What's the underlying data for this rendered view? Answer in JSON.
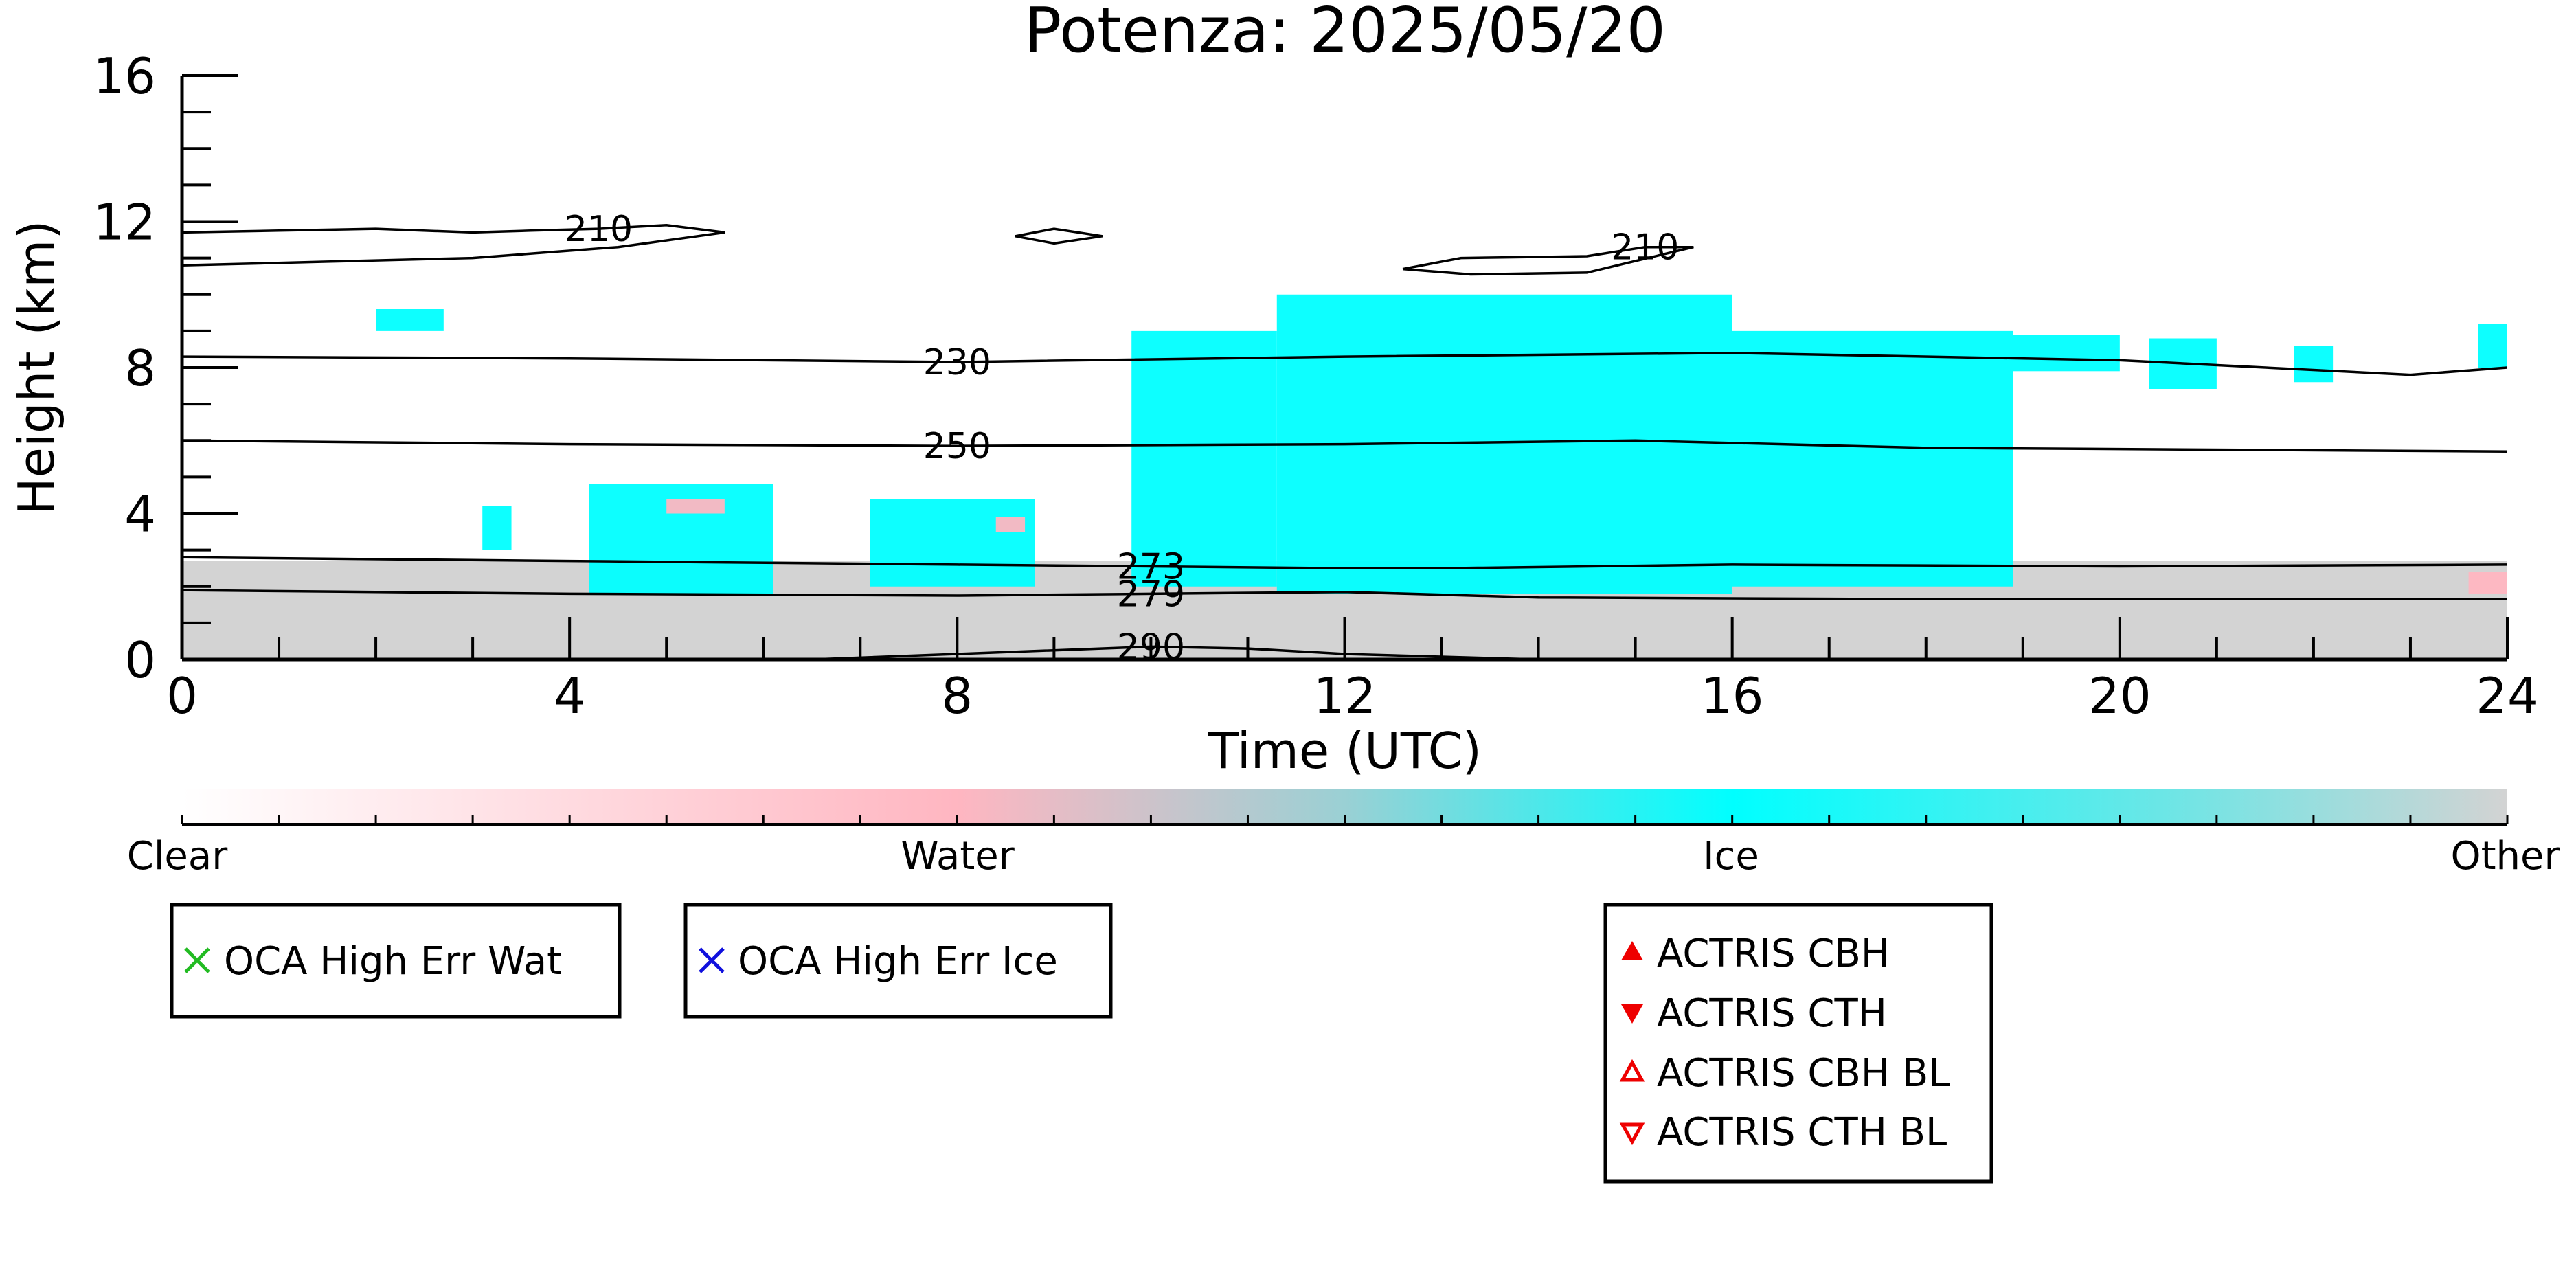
{
  "chart_data": {
    "type": "heatmap",
    "title": "Potenza: 2025/05/20",
    "xlabel": "Time (UTC)",
    "ylabel": "Height (km)",
    "xlim": [
      0,
      24
    ],
    "ylim": [
      0,
      16
    ],
    "x_ticks": [
      "0",
      "4",
      "8",
      "12",
      "16",
      "20",
      "24"
    ],
    "y_ticks": [
      "0",
      "4",
      "8",
      "12",
      "16"
    ],
    "colorbar": {
      "labels": [
        "Clear",
        "Water",
        "Ice",
        "Other"
      ],
      "colors": {
        "clear": "#ffffff",
        "water": "#ffb6c1",
        "ice": "#00ffff",
        "other": "#d3d3d3"
      }
    },
    "contours": [
      {
        "label": "210",
        "points": [
          [
            0,
            11.7
          ],
          [
            1,
            11.75
          ],
          [
            2,
            11.8
          ],
          [
            3,
            11.7
          ],
          [
            3.6,
            11.75
          ],
          [
            4.3,
            11.8
          ],
          [
            5,
            11.9
          ],
          [
            5.6,
            11.7
          ],
          [
            4.5,
            11.3
          ],
          [
            3,
            11.0
          ],
          [
            1.5,
            10.9
          ],
          [
            0,
            10.8
          ]
        ]
      },
      {
        "label": "210",
        "points": [
          [
            12.6,
            10.7
          ],
          [
            13.2,
            11.0
          ],
          [
            14.5,
            11.05
          ],
          [
            15.1,
            11.3
          ],
          [
            15.6,
            11.3
          ],
          [
            14.5,
            10.6
          ],
          [
            13.3,
            10.55
          ],
          [
            12.6,
            10.7
          ]
        ]
      },
      {
        "label": "",
        "points": [
          [
            8.6,
            11.6
          ],
          [
            9.0,
            11.8
          ],
          [
            9.5,
            11.6
          ],
          [
            9.0,
            11.4
          ],
          [
            8.6,
            11.6
          ]
        ]
      },
      {
        "label": "230",
        "points": [
          [
            0,
            8.3
          ],
          [
            4,
            8.25
          ],
          [
            8,
            8.15
          ],
          [
            12,
            8.3
          ],
          [
            16,
            8.4
          ],
          [
            20,
            8.2
          ],
          [
            23,
            7.8
          ],
          [
            24,
            8.0
          ]
        ]
      },
      {
        "label": "250",
        "points": [
          [
            0,
            6.0
          ],
          [
            4,
            5.9
          ],
          [
            8,
            5.85
          ],
          [
            12,
            5.9
          ],
          [
            15,
            6.0
          ],
          [
            18,
            5.8
          ],
          [
            24,
            5.7
          ]
        ]
      },
      {
        "label": "273",
        "points": [
          [
            0,
            2.8
          ],
          [
            4,
            2.7
          ],
          [
            8,
            2.6
          ],
          [
            10,
            2.55
          ],
          [
            12,
            2.5
          ],
          [
            13,
            2.5
          ],
          [
            16,
            2.6
          ],
          [
            20,
            2.55
          ],
          [
            24,
            2.6
          ]
        ]
      },
      {
        "label": "279",
        "points": [
          [
            0,
            1.9
          ],
          [
            4,
            1.8
          ],
          [
            8,
            1.75
          ],
          [
            10,
            1.8
          ],
          [
            12,
            1.85
          ],
          [
            14,
            1.7
          ],
          [
            18,
            1.65
          ],
          [
            24,
            1.65
          ]
        ]
      },
      {
        "label": "290",
        "points": [
          [
            6.5,
            0.0
          ],
          [
            8,
            0.15
          ],
          [
            10,
            0.35
          ],
          [
            11,
            0.3
          ],
          [
            12,
            0.15
          ],
          [
            14,
            0.0
          ]
        ]
      }
    ],
    "regions": [
      {
        "class": "other",
        "x0": 0.0,
        "x1": 24.0,
        "y0": 0.0,
        "y1": 2.7
      },
      {
        "class": "ice",
        "x0": 2.0,
        "x1": 2.7,
        "y0": 9.0,
        "y1": 9.6
      },
      {
        "class": "ice",
        "x0": 3.1,
        "x1": 3.4,
        "y0": 3.0,
        "y1": 4.2
      },
      {
        "class": "ice",
        "x0": 4.2,
        "x1": 6.1,
        "y0": 1.8,
        "y1": 4.8
      },
      {
        "class": "ice",
        "x0": 7.1,
        "x1": 8.8,
        "y0": 2.0,
        "y1": 4.4
      },
      {
        "class": "ice",
        "x0": 9.8,
        "x1": 11.3,
        "y0": 2.0,
        "y1": 9.0
      },
      {
        "class": "ice",
        "x0": 11.3,
        "x1": 16.0,
        "y0": 1.8,
        "y1": 10.0
      },
      {
        "class": "ice",
        "x0": 16.0,
        "x1": 18.9,
        "y0": 2.0,
        "y1": 9.0
      },
      {
        "class": "ice",
        "x0": 18.9,
        "x1": 20.0,
        "y0": 7.9,
        "y1": 8.9
      },
      {
        "class": "ice",
        "x0": 20.3,
        "x1": 21.0,
        "y0": 7.4,
        "y1": 8.8
      },
      {
        "class": "ice",
        "x0": 21.8,
        "x1": 22.2,
        "y0": 7.6,
        "y1": 8.6
      },
      {
        "class": "ice",
        "x0": 23.7,
        "x1": 24.0,
        "y0": 8.0,
        "y1": 9.2
      },
      {
        "class": "water",
        "x0": 5.0,
        "x1": 5.6,
        "y0": 4.0,
        "y1": 4.4
      },
      {
        "class": "water",
        "x0": 8.4,
        "x1": 8.7,
        "y0": 3.5,
        "y1": 3.9
      },
      {
        "class": "water",
        "x0": 23.6,
        "x1": 24.0,
        "y0": 1.8,
        "y1": 2.4
      }
    ],
    "legends": [
      {
        "entries": [
          {
            "label": "OCA High Err Wat",
            "marker": "x",
            "color": "#22bb22"
          }
        ]
      },
      {
        "entries": [
          {
            "label": "OCA High Err Ice",
            "marker": "x",
            "color": "#1010dd"
          }
        ]
      },
      {
        "entries": [
          {
            "label": "ACTRIS CBH",
            "marker": "triangle-up",
            "filled": true,
            "color": "#ee0000"
          },
          {
            "label": "ACTRIS CTH",
            "marker": "triangle-down",
            "filled": true,
            "color": "#ee0000"
          },
          {
            "label": "ACTRIS CBH BL",
            "marker": "triangle-up",
            "filled": false,
            "color": "#ee0000"
          },
          {
            "label": "ACTRIS CTH BL",
            "marker": "triangle-down",
            "filled": false,
            "color": "#ee0000"
          }
        ]
      }
    ]
  }
}
